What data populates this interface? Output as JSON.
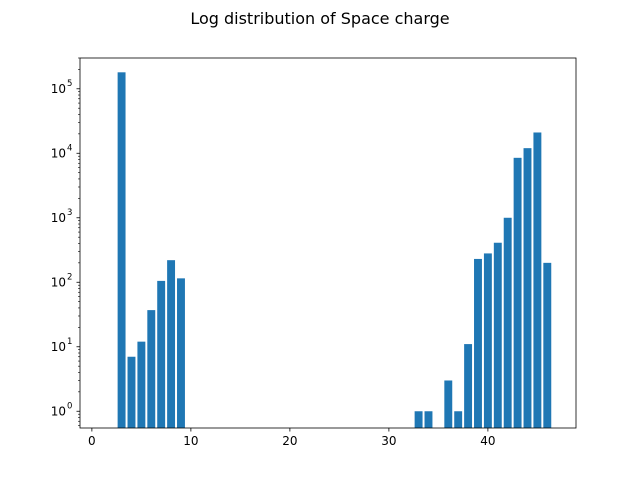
{
  "chart_data": {
    "type": "bar",
    "title": "Log distribution of Space charge",
    "xlabel": "",
    "ylabel": "",
    "yscale": "log",
    "xlim": [
      -1.2,
      48.9
    ],
    "ylim": [
      0.55,
      300000
    ],
    "grid": false,
    "bar_color": "#1f77b4",
    "bar_width": 0.8,
    "xticks": [
      0,
      10,
      20,
      30,
      40
    ],
    "yticks": [
      {
        "value": 1,
        "base": "10",
        "exp": "0"
      },
      {
        "value": 10,
        "base": "10",
        "exp": "1"
      },
      {
        "value": 100,
        "base": "10",
        "exp": "2"
      },
      {
        "value": 1000,
        "base": "10",
        "exp": "3"
      },
      {
        "value": 10000,
        "base": "10",
        "exp": "4"
      },
      {
        "value": 100000,
        "base": "10",
        "exp": "5"
      }
    ],
    "x": [
      3,
      4,
      5,
      6,
      7,
      8,
      9,
      33,
      34,
      36,
      37,
      38,
      39,
      40,
      41,
      42,
      43,
      44,
      45,
      46
    ],
    "values": [
      180000,
      7,
      12,
      37,
      105,
      220,
      115,
      1,
      1,
      3,
      1,
      11,
      230,
      280,
      410,
      1000,
      8500,
      12000,
      21000,
      200
    ]
  }
}
